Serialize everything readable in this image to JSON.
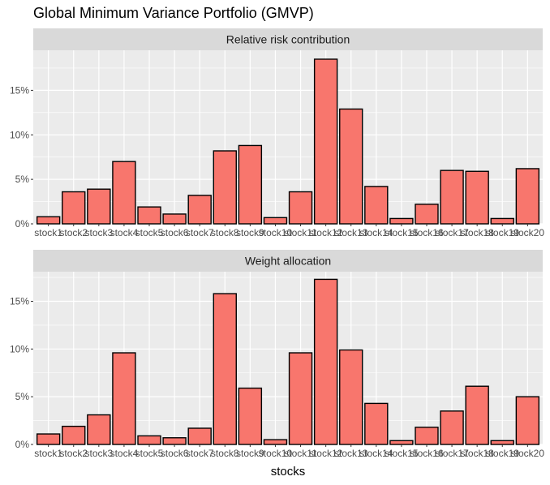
{
  "chart_data": {
    "type": "bar",
    "title": "Global Minimum Variance Portfolio (GMVP)",
    "xlabel": "stocks",
    "ylabel": "",
    "categories": [
      "stock1",
      "stock2",
      "stock3",
      "stock4",
      "stock5",
      "stock6",
      "stock7",
      "stock8",
      "stock9",
      "stock10",
      "stock11",
      "stock12",
      "stock13",
      "stock14",
      "stock15",
      "stock16",
      "stock17",
      "stock18",
      "stock19",
      "stock20"
    ],
    "bar_fill": "#F8766D",
    "bar_outline": "#000000",
    "panel_background": "#EBEBEB",
    "strip_background": "#D9D9D9",
    "grid": true,
    "legend": "none",
    "panels": [
      {
        "label": "Relative risk contribution",
        "ylim": [
          0,
          0.195
        ],
        "yticks": [
          0,
          0.05,
          0.1,
          0.15
        ],
        "ytick_labels": [
          "0%",
          "5%",
          "10%",
          "15%"
        ],
        "values": [
          0.008,
          0.036,
          0.039,
          0.07,
          0.019,
          0.011,
          0.032,
          0.082,
          0.088,
          0.007,
          0.036,
          0.185,
          0.129,
          0.042,
          0.006,
          0.022,
          0.06,
          0.059,
          0.006,
          0.062
        ]
      },
      {
        "label": "Weight allocation",
        "ylim": [
          0,
          0.181
        ],
        "yticks": [
          0,
          0.05,
          0.1,
          0.15
        ],
        "ytick_labels": [
          "0%",
          "5%",
          "10%",
          "15%"
        ],
        "values": [
          0.011,
          0.019,
          0.031,
          0.096,
          0.009,
          0.007,
          0.017,
          0.158,
          0.059,
          0.005,
          0.096,
          0.173,
          0.099,
          0.043,
          0.004,
          0.018,
          0.035,
          0.061,
          0.004,
          0.05
        ]
      }
    ]
  }
}
